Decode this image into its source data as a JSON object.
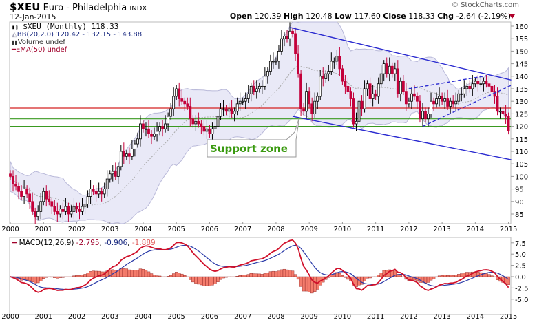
{
  "header": {
    "symbol": "$XEU",
    "name": "Euro - Philadelphia",
    "exchange": "INDX",
    "date": "12-Jan-2015",
    "copyright": "© StockCharts.com",
    "open_label": "Open",
    "open": "120.39",
    "high_label": "High",
    "high": "120.48",
    "low_label": "Low",
    "low": "117.60",
    "close_label": "Close",
    "close": "118.33",
    "chg_label": "Chg",
    "chg": "-2.64 (-2.19%)",
    "chg_direction": "down"
  },
  "legend": {
    "price": "$XEU (Monthly) 118.33",
    "bb": "BB(20,2.0) 120.42 - 132.15 - 143.88",
    "volume": "Volume undef",
    "ema": "EMA(50) undef"
  },
  "macd_legend": {
    "label": "MACD(12,26,9)",
    "macd": "-2.795",
    "signal": "-0.906",
    "hist": "-1.889"
  },
  "colors": {
    "up": "#ffffff",
    "down": "#c4003a",
    "bb_fill": "#e9e9f7",
    "bb_line": "#b9b9d9",
    "channel": "#2a2ad0",
    "resistance": "#d42020",
    "support": "#3a9a20",
    "macd": "#d0102a",
    "signal": "#2a3aa8",
    "hist": "#f47c6c",
    "callout_text": "#3a9a10"
  },
  "chart_data": [
    {
      "type": "candlestick",
      "title": "$XEU (Monthly)",
      "start": "2000-01",
      "frequency": "monthly",
      "close": [
        100,
        97,
        96,
        94,
        92,
        95,
        93,
        90,
        86,
        84,
        86,
        90,
        94,
        91,
        90,
        88,
        86,
        85,
        87,
        86,
        88,
        85,
        86,
        88,
        87,
        86,
        88,
        89,
        92,
        95,
        94,
        93,
        94,
        93,
        95,
        99,
        101,
        102,
        100,
        104,
        110,
        108,
        109,
        108,
        111,
        113,
        115,
        121,
        119,
        119,
        117,
        116,
        117,
        118,
        120,
        119,
        121,
        124,
        127,
        132,
        135,
        131,
        130,
        129,
        128,
        123,
        121,
        122,
        121,
        120,
        118,
        119,
        117,
        119,
        120,
        124,
        127,
        127,
        126,
        127,
        125,
        126,
        129,
        130,
        130,
        131,
        133,
        136,
        134,
        135,
        136,
        136,
        140,
        142,
        146,
        146,
        146,
        150,
        155,
        156,
        155,
        158,
        157,
        149,
        141,
        127,
        126,
        134,
        129,
        125,
        130,
        132,
        140,
        139,
        141,
        142,
        146,
        146,
        148,
        143,
        138,
        136,
        134,
        131,
        121,
        122,
        130,
        127,
        135,
        137,
        131,
        133,
        132,
        137,
        141,
        145,
        141,
        144,
        141,
        143,
        133,
        138,
        134,
        129,
        130,
        133,
        132,
        130,
        123,
        126,
        123,
        125,
        130,
        129,
        131,
        132,
        130,
        131,
        128,
        130,
        129,
        130,
        133,
        133,
        135,
        136,
        135,
        137,
        138,
        137,
        137,
        138,
        137,
        136,
        134,
        132,
        126,
        126,
        125,
        124,
        118.33
      ],
      "x_ticks": [
        "2000",
        "2001",
        "2002",
        "2003",
        "2004",
        "2005",
        "2006",
        "2007",
        "2008",
        "2009",
        "2010",
        "2011",
        "2012",
        "2013",
        "2014",
        "2015"
      ],
      "y_ticks": [
        85,
        90,
        95,
        100,
        105,
        110,
        115,
        120,
        125,
        130,
        135,
        140,
        145,
        150,
        155,
        160
      ],
      "ylim": [
        82,
        161.5
      ],
      "overlays": {
        "bollinger": {
          "period": 20,
          "stddev": 2.0
        }
      },
      "horizontal_lines": [
        {
          "price": 127.3,
          "color": "resistance"
        },
        {
          "price": 123,
          "color": "support"
        },
        {
          "price": 120,
          "color": "support"
        }
      ],
      "trendlines": [
        {
          "from": [
            "2008-06",
            159.5
          ],
          "to": [
            "2015-02",
            138.5
          ],
          "style": "solid"
        },
        {
          "from": [
            "2008-07",
            124
          ],
          "to": [
            "2015-02",
            106.7
          ],
          "style": "solid"
        },
        {
          "from": [
            "2012-01",
            135
          ],
          "to": [
            "2014-05",
            140.2
          ],
          "style": "dashed"
        },
        {
          "from": [
            "2012-06",
            120
          ],
          "to": [
            "2015-02",
            136.4
          ],
          "style": "dashed"
        }
      ],
      "annotation": {
        "text": "Support zone"
      }
    },
    {
      "type": "line",
      "title": "MACD(12,26,9)",
      "series": [
        {
          "name": "MACD"
        },
        {
          "name": "Signal"
        },
        {
          "name": "Histogram"
        }
      ],
      "y_ticks": [
        "7.5",
        "5.0",
        "2.5",
        "0.0",
        "-2.5",
        "-5.0"
      ],
      "ylim": [
        -7.5,
        9
      ]
    }
  ]
}
